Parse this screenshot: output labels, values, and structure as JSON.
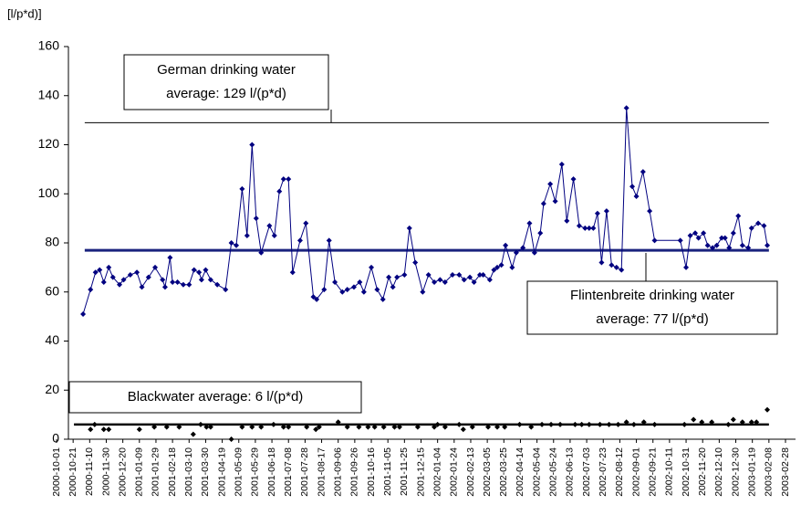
{
  "chart_data": {
    "type": "line",
    "y_label": "[l/p*d)]",
    "xlim": [
      "2000-10-01",
      "2003-02-28"
    ],
    "xticks": [
      "2000-10-01",
      "2000-10-21",
      "2000-11-10",
      "2000-11-30",
      "2000-12-20",
      "2001-01-09",
      "2001-01-29",
      "2001-02-18",
      "2001-03-10",
      "2001-03-30",
      "2001-04-19",
      "2001-05-09",
      "2001-05-29",
      "2001-06-18",
      "2001-07-08",
      "2001-07-28",
      "2001-08-17",
      "2001-09-06",
      "2001-09-26",
      "2001-10-16",
      "2001-11-05",
      "2001-11-25",
      "2001-12-15",
      "2002-01-04",
      "2002-01-24",
      "2002-02-13",
      "2002-03-05",
      "2002-03-25",
      "2002-04-14",
      "2002-05-04",
      "2002-05-24",
      "2002-06-13",
      "2002-07-03",
      "2002-07-23",
      "2002-08-12",
      "2002-09-01",
      "2002-09-21",
      "2002-10-11",
      "2002-10-31",
      "2002-11-20",
      "2002-12-10",
      "2002-12-30",
      "2003-01-19",
      "2003-02-08",
      "2003-02-28"
    ],
    "ylim": [
      0,
      160
    ],
    "yticks": [
      0,
      20,
      40,
      60,
      80,
      100,
      120,
      140,
      160
    ],
    "grid": false,
    "series": [
      {
        "color": "#000080",
        "line": true,
        "marker": "diamond",
        "x": [
          "2000-11-02",
          "2000-11-11",
          "2000-11-17",
          "2000-11-22",
          "2000-11-27",
          "2000-12-03",
          "2000-12-08",
          "2000-12-16",
          "2000-12-21",
          "2000-12-29",
          "2001-01-06",
          "2001-01-12",
          "2001-01-20",
          "2001-01-28",
          "2001-02-06",
          "2001-02-09",
          "2001-02-15",
          "2001-02-18",
          "2001-02-24",
          "2001-03-03",
          "2001-03-10",
          "2001-03-16",
          "2001-03-22",
          "2001-03-25",
          "2001-03-30",
          "2001-04-05",
          "2001-04-13",
          "2001-04-23",
          "2001-04-30",
          "2001-05-06",
          "2001-05-13",
          "2001-05-19",
          "2001-05-25",
          "2001-05-30",
          "2001-06-05",
          "2001-06-15",
          "2001-06-21",
          "2001-06-27",
          "2001-07-02",
          "2001-07-08",
          "2001-07-13",
          "2001-07-22",
          "2001-07-29",
          "2001-08-07",
          "2001-08-11",
          "2001-08-20",
          "2001-08-26",
          "2001-09-02",
          "2001-09-11",
          "2001-09-17",
          "2001-09-25",
          "2001-10-02",
          "2001-10-07",
          "2001-10-16",
          "2001-10-23",
          "2001-10-30",
          "2001-11-06",
          "2001-11-11",
          "2001-11-16",
          "2001-11-25",
          "2001-12-01",
          "2001-12-08",
          "2001-12-17",
          "2001-12-24",
          "2001-12-31",
          "2002-01-07",
          "2002-01-13",
          "2002-01-22",
          "2002-01-30",
          "2002-02-05",
          "2002-02-12",
          "2002-02-17",
          "2002-02-24",
          "2002-02-28",
          "2002-03-08",
          "2002-03-13",
          "2002-03-17",
          "2002-03-22",
          "2002-03-27",
          "2002-04-04",
          "2002-04-09",
          "2002-04-17",
          "2002-04-25",
          "2002-05-01",
          "2002-05-08",
          "2002-05-12",
          "2002-05-20",
          "2002-05-26",
          "2002-06-03",
          "2002-06-09",
          "2002-06-17",
          "2002-06-24",
          "2002-07-01",
          "2002-07-06",
          "2002-07-11",
          "2002-07-16",
          "2002-07-21",
          "2002-07-27",
          "2002-08-02",
          "2002-08-08",
          "2002-08-14",
          "2002-08-20",
          "2002-08-27",
          "2002-09-01",
          "2002-09-09",
          "2002-09-17",
          "2002-09-23",
          "2002-10-24",
          "2002-10-31",
          "2002-11-05",
          "2002-11-11",
          "2002-11-15",
          "2002-11-21",
          "2002-11-26",
          "2002-12-02",
          "2002-12-07",
          "2002-12-13",
          "2002-12-17",
          "2002-12-22",
          "2002-12-27",
          "2003-01-02",
          "2003-01-07",
          "2003-01-14",
          "2003-01-18",
          "2003-01-26",
          "2003-02-02",
          "2003-02-06"
        ],
        "values": [
          51,
          61,
          68,
          69,
          64,
          70,
          66,
          63,
          65,
          67,
          68,
          62,
          66,
          70,
          65,
          62,
          74,
          64,
          64,
          63,
          63,
          69,
          68,
          65,
          69,
          65,
          63,
          61,
          80,
          79,
          102,
          83,
          120,
          90,
          76,
          87,
          83,
          101,
          106,
          106,
          68,
          81,
          88,
          58,
          57,
          61,
          81,
          64,
          60,
          61,
          62,
          64,
          60,
          70,
          61,
          57,
          66,
          62,
          66,
          67,
          86,
          72,
          60,
          67,
          64,
          65,
          64,
          67,
          67,
          65,
          66,
          64,
          67,
          67,
          65,
          69,
          70,
          71,
          79,
          70,
          76,
          78,
          88,
          76,
          84,
          96,
          104,
          97,
          112,
          89,
          106,
          87,
          86,
          86,
          86,
          92,
          72,
          93,
          71,
          70,
          69,
          135,
          103,
          99,
          109,
          93,
          81,
          81,
          70,
          83,
          84,
          82,
          84,
          79,
          78,
          79,
          82,
          82,
          78,
          84,
          91,
          79,
          78,
          86,
          88,
          87,
          79
        ]
      },
      {
        "color": "#000000",
        "line": false,
        "marker": "diamond",
        "x": [
          "2000-11-11",
          "2000-11-16",
          "2000-11-27",
          "2000-12-03",
          "2001-01-09",
          "2001-01-27",
          "2001-02-11",
          "2001-02-26",
          "2001-03-15",
          "2001-03-24",
          "2001-03-31",
          "2001-04-05",
          "2001-04-30",
          "2001-05-13",
          "2001-05-25",
          "2001-06-05",
          "2001-06-20",
          "2001-07-02",
          "2001-07-08",
          "2001-07-30",
          "2001-08-10",
          "2001-08-14",
          "2001-09-06",
          "2001-09-17",
          "2001-10-01",
          "2001-10-12",
          "2001-10-20",
          "2001-10-31",
          "2001-11-13",
          "2001-11-19",
          "2001-12-11",
          "2001-12-31",
          "2002-01-04",
          "2002-01-13",
          "2002-01-30",
          "2002-02-04",
          "2002-02-15",
          "2002-03-06",
          "2002-03-17",
          "2002-03-26",
          "2002-04-13",
          "2002-04-27",
          "2002-05-10",
          "2002-05-21",
          "2002-06-01",
          "2002-06-19",
          "2002-06-27",
          "2002-07-06",
          "2002-07-19",
          "2002-07-30",
          "2002-08-10",
          "2002-08-20",
          "2002-08-29",
          "2002-09-10",
          "2002-09-23",
          "2002-10-29",
          "2002-11-09",
          "2002-11-19",
          "2002-12-01",
          "2002-12-21",
          "2002-12-27",
          "2003-01-07",
          "2003-01-18",
          "2003-01-24",
          "2003-02-06"
        ],
        "values": [
          4,
          6,
          4,
          4,
          4,
          5,
          5,
          5,
          2,
          6,
          5,
          5,
          0,
          5,
          5,
          5,
          6,
          5,
          5,
          5,
          4,
          5,
          7,
          5,
          5,
          5,
          5,
          5,
          5,
          5,
          5,
          5,
          6,
          5,
          6,
          4,
          5,
          5,
          5,
          5,
          6,
          5,
          6,
          6,
          6,
          6,
          6,
          6,
          6,
          6,
          6,
          7,
          6,
          7,
          6,
          6,
          8,
          7,
          7,
          6,
          8,
          7,
          7,
          7,
          12
        ]
      }
    ],
    "annotations": [
      {
        "text": [
          "German drinking water",
          "average: 129 l/(p*d)"
        ],
        "value": 129,
        "x": [
          "2000-11-04",
          "2003-02-08"
        ],
        "color": "#000000",
        "width": 1
      },
      {
        "text": [
          "Flintenbreite drinking water",
          "average: 77 l/(p*d)"
        ],
        "value": 77,
        "x": [
          "2000-11-04",
          "2003-02-08"
        ],
        "color": "#1a237e",
        "width": 3
      },
      {
        "text": [
          "Blackwater average: 6 l/(p*d)"
        ],
        "value": 6,
        "x": [
          "2000-10-22",
          "2003-02-08"
        ],
        "color": "#000000",
        "width": 2.5
      }
    ]
  }
}
